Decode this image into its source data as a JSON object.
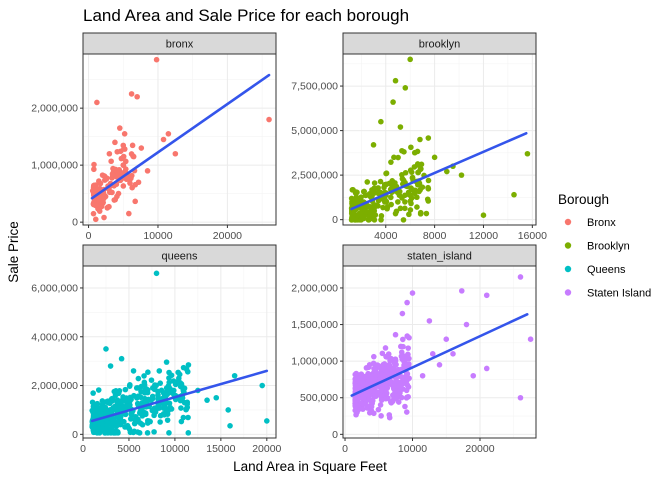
{
  "chart_data": {
    "type": "scatter",
    "title": "Land Area and Sale Price for each borough",
    "xlabel": "Land Area in Square Feet",
    "ylabel": "Sale Price",
    "legend": {
      "title": "Borough",
      "placement": "right",
      "entries": [
        {
          "label": "Bronx",
          "color": "#F8766D"
        },
        {
          "label": "Brooklyn",
          "color": "#7CAE00"
        },
        {
          "label": "Queens",
          "color": "#00BFC4"
        },
        {
          "label": "Staten Island",
          "color": "#C77CFF"
        }
      ]
    },
    "fit_line_color": "#3455EB",
    "panels": [
      {
        "name": "bronx",
        "color": "#F8766D",
        "xlim": [
          -800,
          27000
        ],
        "ylim": [
          -50000,
          2950000
        ],
        "xticks": [
          {
            "v": 0,
            "label": "0"
          },
          {
            "v": 10000,
            "label": "10000"
          },
          {
            "v": 20000,
            "label": "20000"
          }
        ],
        "yticks": [
          {
            "v": 0,
            "label": "0"
          },
          {
            "v": 1000000,
            "label": "1,000,000"
          },
          {
            "v": 2000000,
            "label": "2,000,000"
          }
        ],
        "trend": [
          [
            500,
            420000
          ],
          [
            26000,
            2580000
          ]
        ],
        "cluster": {
          "n": 140,
          "xmin": 700,
          "xmax": 6800,
          "seed": 11
        },
        "points": [
          [
            9800,
            2850000
          ],
          [
            1200,
            2100000
          ],
          [
            6200,
            2250000
          ],
          [
            7000,
            2200000
          ],
          [
            26000,
            1800000
          ],
          [
            12500,
            1200000
          ],
          [
            10800,
            1450000
          ],
          [
            4500,
            1650000
          ],
          [
            5200,
            1550000
          ],
          [
            3800,
            1400000
          ],
          [
            7600,
            1300000
          ],
          [
            6500,
            1150000
          ],
          [
            2700,
            250000
          ],
          [
            5800,
            150000
          ],
          [
            8500,
            900000
          ],
          [
            11500,
            1550000
          ],
          [
            600,
            550000
          ],
          [
            3000,
            1200000
          ],
          [
            5000,
            1000000
          ],
          [
            7200,
            700000
          ]
        ]
      },
      {
        "name": "brooklyn",
        "color": "#7CAE00",
        "xlim": [
          500,
          16300
        ],
        "ylim": [
          -300000,
          9300000
        ],
        "xticks": [
          {
            "v": 4000,
            "label": "4000"
          },
          {
            "v": 8000,
            "label": "8000"
          },
          {
            "v": 12000,
            "label": "12000"
          },
          {
            "v": 16000,
            "label": "16000"
          }
        ],
        "yticks": [
          {
            "v": 0,
            "label": "0"
          },
          {
            "v": 2500000,
            "label": "2,500,000"
          },
          {
            "v": 5000000,
            "label": "5,000,000"
          },
          {
            "v": 7500000,
            "label": "7,500,000"
          }
        ],
        "trend": [
          [
            1200,
            600000
          ],
          [
            15500,
            4850000
          ]
        ],
        "cluster": {
          "n": 230,
          "xmin": 1200,
          "xmax": 7500,
          "seed": 23
        },
        "points": [
          [
            6000,
            9000000
          ],
          [
            4800,
            7800000
          ],
          [
            5600,
            7400000
          ],
          [
            4600,
            6600000
          ],
          [
            15600,
            3700000
          ],
          [
            14500,
            1400000
          ],
          [
            12000,
            250000
          ],
          [
            8000,
            3500000
          ],
          [
            9500,
            3000000
          ],
          [
            3600,
            5500000
          ],
          [
            6800,
            4500000
          ],
          [
            5200,
            5200000
          ],
          [
            10200,
            2500000
          ],
          [
            9000,
            2700000
          ],
          [
            3000,
            4200000
          ],
          [
            7500,
            2200000
          ]
        ]
      },
      {
        "name": "queens",
        "color": "#00BFC4",
        "xlim": [
          0,
          21000
        ],
        "ylim": [
          -150000,
          6900000
        ],
        "xticks": [
          {
            "v": 0,
            "label": "0"
          },
          {
            "v": 5000,
            "label": "5000"
          },
          {
            "v": 10000,
            "label": "10000"
          },
          {
            "v": 15000,
            "label": "15000"
          },
          {
            "v": 20000,
            "label": "20000"
          }
        ],
        "yticks": [
          {
            "v": 0,
            "label": "0"
          },
          {
            "v": 2000000,
            "label": "2,000,000"
          },
          {
            "v": 4000000,
            "label": "4,000,000"
          },
          {
            "v": 6000000,
            "label": "6,000,000"
          }
        ],
        "trend": [
          [
            1000,
            550000
          ],
          [
            20000,
            2600000
          ]
        ],
        "cluster": {
          "n": 400,
          "xmin": 1000,
          "xmax": 11500,
          "seed": 37
        },
        "points": [
          [
            8000,
            6600000
          ],
          [
            2500,
            3500000
          ],
          [
            4200,
            3100000
          ],
          [
            16500,
            2400000
          ],
          [
            19500,
            2000000
          ],
          [
            15800,
            1000000
          ],
          [
            16000,
            350000
          ],
          [
            20000,
            550000
          ],
          [
            13500,
            1400000
          ],
          [
            14500,
            1500000
          ],
          [
            12500,
            1800000
          ],
          [
            3000,
            2800000
          ],
          [
            5500,
            2600000
          ]
        ]
      },
      {
        "name": "staten_island",
        "color": "#C77CFF",
        "xlim": [
          -300,
          28300
        ],
        "ylim": [
          -50000,
          2300000
        ],
        "xticks": [
          {
            "v": 0,
            "label": "0"
          },
          {
            "v": 10000,
            "label": "10000"
          },
          {
            "v": 20000,
            "label": "20000"
          }
        ],
        "yticks": [
          {
            "v": 0,
            "label": "0"
          },
          {
            "v": 500000,
            "label": "500,000"
          },
          {
            "v": 1000000,
            "label": "1,000,000"
          },
          {
            "v": 1500000,
            "label": "1,500,000"
          },
          {
            "v": 2000000,
            "label": "2,000,000"
          }
        ],
        "trend": [
          [
            1000,
            530000
          ],
          [
            27000,
            1640000
          ]
        ],
        "cluster": {
          "n": 450,
          "xmin": 1500,
          "xmax": 9500,
          "seed": 53
        },
        "points": [
          [
            10000,
            1930000
          ],
          [
            17300,
            1960000
          ],
          [
            21000,
            1900000
          ],
          [
            26000,
            2150000
          ],
          [
            27500,
            1300000
          ],
          [
            26000,
            500000
          ],
          [
            21000,
            900000
          ],
          [
            19000,
            800000
          ],
          [
            16000,
            1100000
          ],
          [
            12500,
            1550000
          ],
          [
            15000,
            1300000
          ],
          [
            9200,
            1800000
          ],
          [
            13000,
            1100000
          ],
          [
            11500,
            800000
          ],
          [
            14000,
            950000
          ],
          [
            18000,
            1500000
          ],
          [
            8500,
            1650000
          ]
        ]
      }
    ]
  }
}
